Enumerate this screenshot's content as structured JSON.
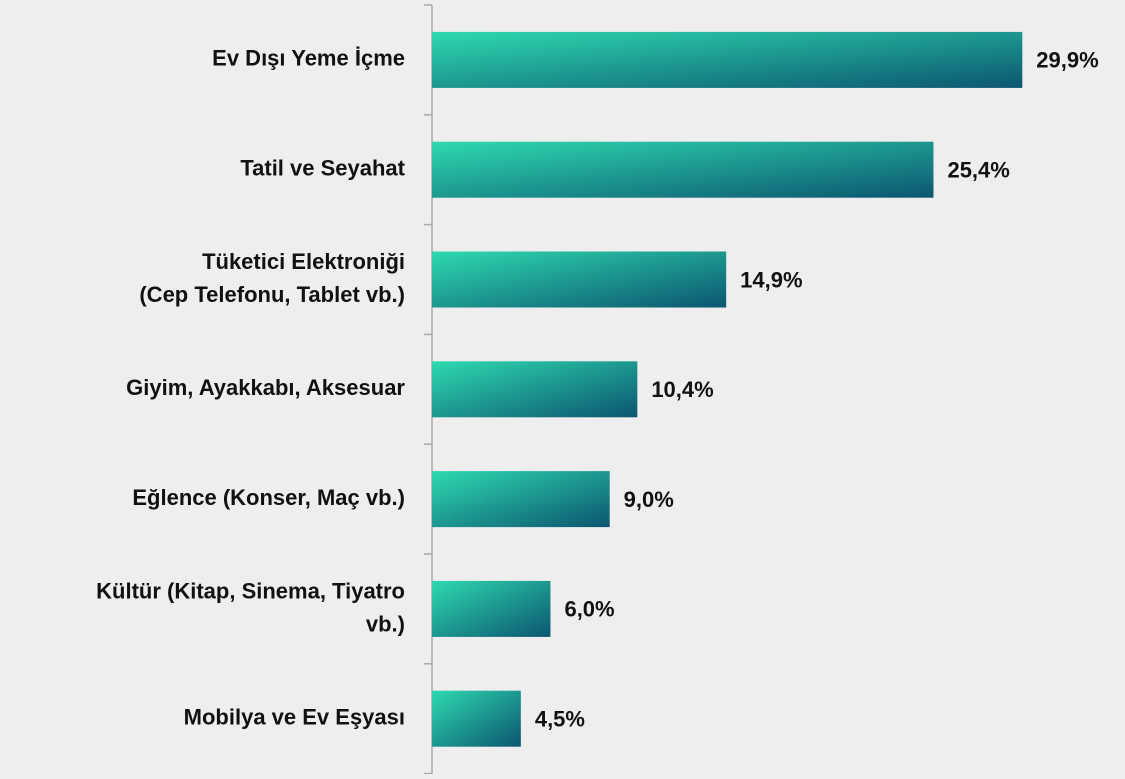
{
  "chart_data": {
    "type": "barh",
    "categories": [
      "Ev Dışı Yeme İçme",
      "Tatil ve Seyahat",
      "Tüketici Elektroniği\n(Cep Telefonu, Tablet vb.)",
      "Giyim, Ayakkabı, Aksesuar",
      "Eğlence (Konser, Maç vb.)",
      "Kültür (Kitap, Sinema, Tiyatro\nvb.)",
      "Mobilya ve Ev Eşyası"
    ],
    "values": [
      29.9,
      25.4,
      14.9,
      10.4,
      9.0,
      6.0,
      4.5
    ],
    "value_labels": [
      "29,9%",
      "25,4%",
      "14,9%",
      "10,4%",
      "9,0%",
      "6,0%",
      "4,5%"
    ],
    "colors": [
      "#2ed9b0",
      "#0c5670"
    ],
    "xlim": [
      0,
      35
    ]
  }
}
